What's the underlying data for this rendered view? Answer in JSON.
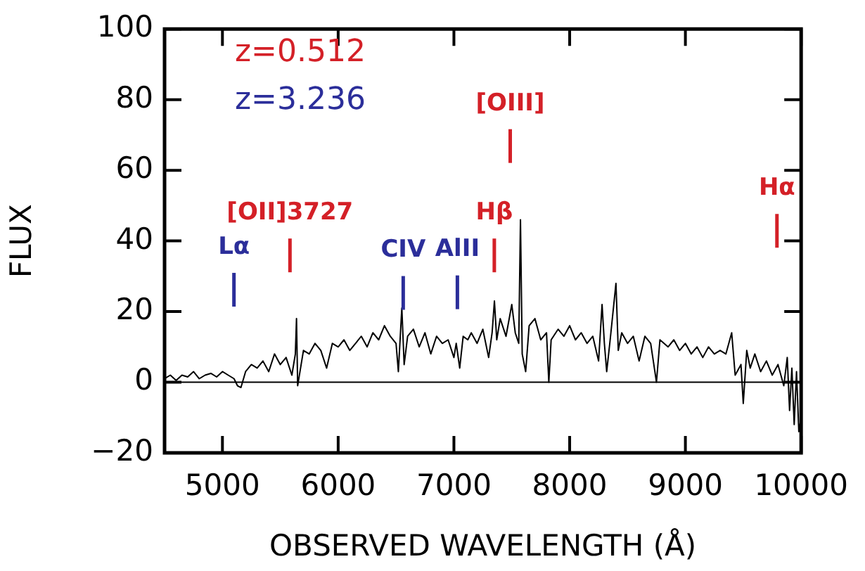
{
  "chart_data": {
    "type": "line",
    "xlabel": "OBSERVED WAVELENGTH (Å)",
    "ylabel": "FLUX",
    "xlim": [
      4500,
      10000
    ],
    "xticks": [
      5000,
      6000,
      7000,
      8000,
      9000,
      10000
    ],
    "ylim": [
      -20,
      100
    ],
    "yticks": [
      -20,
      0,
      20,
      40,
      60,
      80,
      100
    ],
    "marker": "none",
    "ref_lines": [
      {
        "axis": "y",
        "value": 0,
        "color": "#000000"
      }
    ],
    "annotations": [
      "z=0.512",
      "z=3.236",
      "Lα",
      "[OII]3727",
      {
        "text": "CIV",
        "x": 6562,
        "y": 20.5
      },
      "AlII",
      "Hβ",
      "[OIII]",
      "Hα"
    ],
    "series": [
      {
        "color": "#000000",
        "x": [
          4500,
          4550,
          4600,
          4650,
          4700,
          4750,
          4800,
          4850,
          4900,
          4950,
          5000,
          5050,
          5100,
          5130,
          5160,
          5200,
          5250,
          5300,
          5350,
          5400,
          5450,
          5500,
          5550,
          5600,
          5630,
          5640,
          5650,
          5700,
          5750,
          5800,
          5850,
          5900,
          5950,
          6000,
          6050,
          6100,
          6150,
          6200,
          6250,
          6300,
          6350,
          6400,
          6450,
          6500,
          6520,
          6550,
          6570,
          6600,
          6650,
          6700,
          6750,
          6800,
          6850,
          6900,
          6950,
          7000,
          7020,
          7050,
          7080,
          7120,
          7150,
          7200,
          7250,
          7300,
          7330,
          7350,
          7370,
          7400,
          7450,
          7500,
          7530,
          7560,
          7575,
          7590,
          7620,
          7650,
          7700,
          7750,
          7800,
          7820,
          7840,
          7900,
          7950,
          8000,
          8050,
          8100,
          8150,
          8200,
          8250,
          8280,
          8300,
          8320,
          8350,
          8400,
          8420,
          8450,
          8500,
          8550,
          8600,
          8650,
          8700,
          8750,
          8780,
          8850,
          8900,
          8950,
          9000,
          9050,
          9100,
          9150,
          9200,
          9250,
          9300,
          9350,
          9400,
          9430,
          9480,
          9500,
          9530,
          9560,
          9600,
          9650,
          9700,
          9750,
          9800,
          9850,
          9880,
          9900,
          9920,
          9940,
          9960,
          9980,
          10000
        ],
        "values": [
          1,
          2,
          0.5,
          2,
          1.5,
          3,
          1,
          2,
          2.5,
          1.5,
          3,
          2,
          1,
          -1,
          -1.5,
          3,
          5,
          4,
          6,
          3,
          8,
          5,
          7,
          2,
          8,
          18,
          -1,
          9,
          8,
          11,
          9,
          4,
          11,
          10,
          12,
          9,
          11,
          13,
          10,
          14,
          12,
          16,
          13,
          11,
          3,
          21,
          5,
          13,
          15,
          10,
          14,
          8,
          13,
          11,
          12,
          7,
          11,
          4,
          13,
          12,
          14,
          11,
          15,
          7,
          14,
          23,
          12,
          18,
          13,
          22,
          14,
          11,
          46,
          8,
          3,
          16,
          18,
          12,
          14,
          0,
          12,
          15,
          13,
          16,
          12,
          14,
          11,
          13,
          6,
          22,
          11,
          3,
          12,
          28,
          9,
          14,
          11,
          13,
          6,
          13,
          11,
          0,
          12,
          10,
          12,
          9,
          11,
          8,
          10,
          7,
          10,
          8,
          9,
          8,
          14,
          2,
          5,
          -6,
          9,
          4,
          8,
          3,
          6,
          2,
          5,
          -1,
          7,
          -8,
          4,
          -12,
          3,
          -14,
          -10
        ]
      }
    ]
  }
}
